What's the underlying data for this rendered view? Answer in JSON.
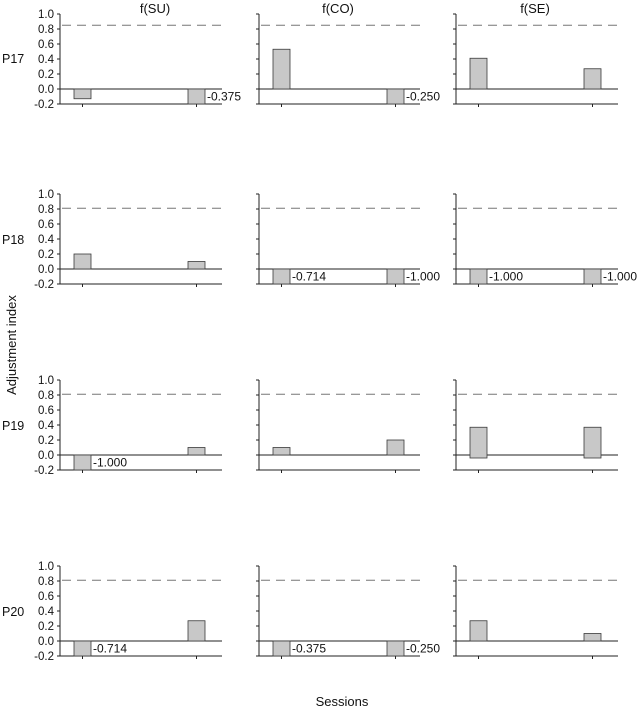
{
  "figure": {
    "y_axis_title": "Adjustment index",
    "x_axis_title": "Sessions",
    "column_titles": [
      "f(SU)",
      "f(CO)",
      "f(SE)"
    ],
    "row_labels": [
      "P17",
      "P18",
      "P19",
      "P20"
    ]
  },
  "colors": {
    "bar_fill": "#c8c8c8",
    "bar_stroke": "#3a3a3a",
    "axis": "#222222",
    "reference_line": "#777777"
  },
  "chart_data": [
    {
      "type": "bar",
      "participant": "P17",
      "metric": "f(SU)",
      "ylim": [
        -0.2,
        1.0
      ],
      "yticks": [
        "1.0",
        "0.8",
        "0.6",
        "0.4",
        "0.2",
        "0.0",
        "-0.2"
      ],
      "reference": 0.85,
      "bars": [
        {
          "low": -0.13,
          "high": 0
        },
        {
          "low": -0.2,
          "high": 0,
          "label": "-0.375"
        }
      ]
    },
    {
      "type": "bar",
      "participant": "P17",
      "metric": "f(CO)",
      "ylim": [
        -0.2,
        1.0
      ],
      "reference": 0.85,
      "bars": [
        {
          "low": 0,
          "high": 0.53
        },
        {
          "low": -0.2,
          "high": 0,
          "label": "-0.250"
        }
      ]
    },
    {
      "type": "bar",
      "participant": "P17",
      "metric": "f(SE)",
      "ylim": [
        -0.2,
        1.0
      ],
      "reference": 0.85,
      "bars": [
        {
          "low": 0,
          "high": 0.41
        },
        {
          "low": 0,
          "high": 0.27
        }
      ]
    },
    {
      "type": "bar",
      "participant": "P18",
      "metric": "f(SU)",
      "ylim": [
        -0.2,
        1.0
      ],
      "yticks": [
        "1.0",
        "0.8",
        "0.6",
        "0.4",
        "0.2",
        "0.0",
        "-0.2"
      ],
      "reference": 0.81,
      "bars": [
        {
          "low": 0,
          "high": 0.2
        },
        {
          "low": 0,
          "high": 0.1
        }
      ]
    },
    {
      "type": "bar",
      "participant": "P18",
      "metric": "f(CO)",
      "ylim": [
        -0.2,
        1.0
      ],
      "reference": 0.81,
      "bars": [
        {
          "low": -0.2,
          "high": 0,
          "label": "-0.714"
        },
        {
          "low": -0.2,
          "high": 0,
          "label": "-1.000"
        }
      ]
    },
    {
      "type": "bar",
      "participant": "P18",
      "metric": "f(SE)",
      "ylim": [
        -0.2,
        1.0
      ],
      "reference": 0.81,
      "bars": [
        {
          "low": -0.2,
          "high": 0,
          "label": "-1.000"
        },
        {
          "low": -0.2,
          "high": 0,
          "label": "-1.000"
        }
      ]
    },
    {
      "type": "bar",
      "participant": "P19",
      "metric": "f(SU)",
      "ylim": [
        -0.2,
        1.0
      ],
      "yticks": [
        "1.0",
        "0.8",
        "0.6",
        "0.4",
        "0.2",
        "0.0",
        "-0.2"
      ],
      "reference": 0.81,
      "bars": [
        {
          "low": -0.2,
          "high": 0,
          "label": "-1.000"
        },
        {
          "low": 0,
          "high": 0.1
        }
      ]
    },
    {
      "type": "bar",
      "participant": "P19",
      "metric": "f(CO)",
      "ylim": [
        -0.2,
        1.0
      ],
      "reference": 0.81,
      "bars": [
        {
          "low": 0,
          "high": 0.1
        },
        {
          "low": 0,
          "high": 0.2
        }
      ]
    },
    {
      "type": "bar",
      "participant": "P19",
      "metric": "f(SE)",
      "ylim": [
        -0.2,
        1.0
      ],
      "reference": 0.81,
      "bars": [
        {
          "low": -0.04,
          "high": 0.37
        },
        {
          "low": -0.04,
          "high": 0.37
        }
      ]
    },
    {
      "type": "bar",
      "participant": "P20",
      "metric": "f(SU)",
      "ylim": [
        -0.2,
        1.0
      ],
      "yticks": [
        "1.0",
        "0.8",
        "0.6",
        "0.4",
        "0.2",
        "0.0",
        "-0.2"
      ],
      "reference": 0.81,
      "bars": [
        {
          "low": -0.2,
          "high": 0,
          "label": "-0.714"
        },
        {
          "low": 0,
          "high": 0.27
        }
      ]
    },
    {
      "type": "bar",
      "participant": "P20",
      "metric": "f(CO)",
      "ylim": [
        -0.2,
        1.0
      ],
      "reference": 0.81,
      "bars": [
        {
          "low": -0.2,
          "high": 0,
          "label": "-0.375"
        },
        {
          "low": -0.2,
          "high": 0,
          "label": "-0.250"
        }
      ]
    },
    {
      "type": "bar",
      "participant": "P20",
      "metric": "f(SE)",
      "ylim": [
        -0.2,
        1.0
      ],
      "reference": 0.81,
      "bars": [
        {
          "low": 0,
          "high": 0.27
        },
        {
          "low": 0,
          "high": 0.1
        }
      ]
    }
  ]
}
